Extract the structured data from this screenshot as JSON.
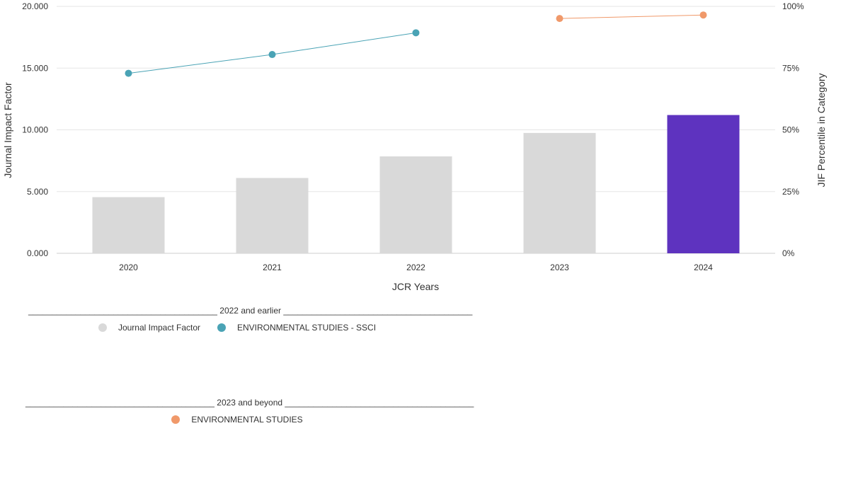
{
  "chart_data": {
    "type": "bar",
    "categories": [
      "2020",
      "2021",
      "2022",
      "2023",
      "2024"
    ],
    "bar_series": {
      "name": "Journal Impact Factor",
      "values": [
        4.55,
        6.1,
        7.85,
        9.75,
        11.2
      ],
      "colors": [
        "#d9d9d9",
        "#d9d9d9",
        "#d9d9d9",
        "#d9d9d9",
        "#5e33bf"
      ]
    },
    "line_series": [
      {
        "name": "ENVIRONMENTAL STUDIES - SSCI",
        "color": "#4aa3b5",
        "points": [
          {
            "x": "2020",
            "y": 72.9
          },
          {
            "x": "2021",
            "y": 80.5
          },
          {
            "x": "2022",
            "y": 89.3
          }
        ]
      },
      {
        "name": "ENVIRONMENTAL STUDIES",
        "color": "#f0996a",
        "points": [
          {
            "x": "2023",
            "y": 95.1
          },
          {
            "x": "2024",
            "y": 96.5
          }
        ]
      }
    ],
    "xlabel": "JCR Years",
    "ylabel": "Journal Impact Factor",
    "y2label": "JIF Percentile in Category",
    "ylim": [
      0,
      20
    ],
    "y2lim": [
      0,
      100
    ],
    "yticks": [
      "0.000",
      "5.000",
      "10.000",
      "15.000",
      "20.000"
    ],
    "y2ticks": [
      "0%",
      "25%",
      "50%",
      "75%",
      "100%"
    ],
    "grid": true
  },
  "legend": {
    "group1": {
      "title": "________________________________________ 2022 and earlier ________________________________________",
      "items": [
        {
          "label": "Journal Impact Factor",
          "color": "#d9d9d9"
        },
        {
          "label": "ENVIRONMENTAL STUDIES - SSCI",
          "color": "#4aa3b5"
        }
      ]
    },
    "group2": {
      "title": "________________________________________ 2023 and beyond ________________________________________",
      "items": [
        {
          "label": "ENVIRONMENTAL STUDIES",
          "color": "#f0996a"
        }
      ]
    }
  }
}
